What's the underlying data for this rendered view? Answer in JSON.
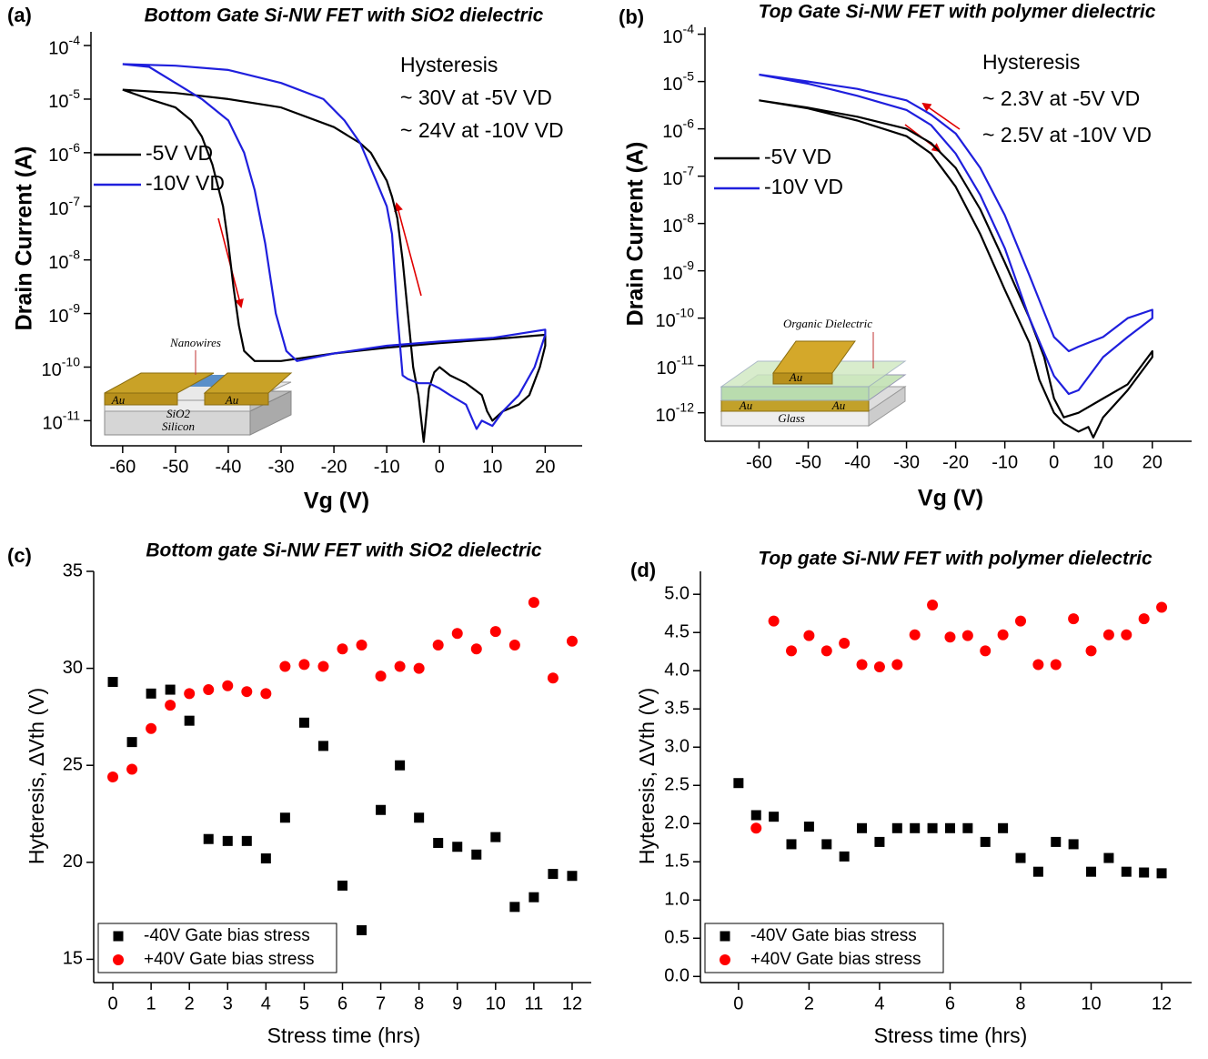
{
  "chart_data": [
    {
      "type": "line",
      "panel": "(a)",
      "title": "Bottom Gate Si-NW FET with SiO2 dielectric",
      "xlabel": "Vg (V)",
      "ylabel": "Drain Current (A)",
      "log_y": true,
      "xlim": [
        -66,
        27
      ],
      "ylim": [
        3.4e-12,
        0.00018
      ],
      "xticks": [
        -60,
        -50,
        -40,
        -30,
        -20,
        -10,
        0,
        10,
        20
      ],
      "yticks": [
        {
          "value": 0.0001,
          "label": "10-4"
        },
        {
          "value": 1e-05,
          "label": "10-5"
        },
        {
          "value": 1e-06,
          "label": "10-6"
        },
        {
          "value": 1e-07,
          "label": "10-7"
        },
        {
          "value": 1e-08,
          "label": "10-8"
        },
        {
          "value": 1e-09,
          "label": "10-9"
        },
        {
          "value": 1e-10,
          "label": "10-10"
        },
        {
          "value": 1e-11,
          "label": "10-11"
        }
      ],
      "annotations": [
        "Hysteresis",
        "~ 30V at -5V VD",
        "~ 24V at -10V VD"
      ],
      "inset_labels": [
        "Nanowires",
        "Au",
        "Au",
        "SiO2",
        "Silicon"
      ],
      "series": [
        {
          "name": "-5V VD",
          "color": "#000000",
          "x": [
            -60,
            -55,
            -50,
            -47,
            -45,
            -43,
            -41,
            -40,
            -39,
            -38,
            -37,
            -35,
            -30,
            -20,
            -10,
            0,
            10,
            20,
            20,
            19,
            17,
            15,
            12,
            10,
            9,
            8,
            5,
            2,
            0,
            -1,
            -2,
            -3,
            -4,
            -5,
            -6,
            -7,
            -8,
            -9,
            -10,
            -13,
            -15,
            -20,
            -30,
            -40,
            -50,
            -60
          ],
          "values": [
            1.5e-05,
            1e-05,
            7e-06,
            4e-06,
            2e-06,
            6e-07,
            1e-07,
            2e-08,
            3e-09,
            6e-10,
            2e-10,
            1.3e-10,
            1.3e-10,
            1.8e-10,
            2.3e-10,
            2.8e-10,
            3.3e-10,
            4e-10,
            2.5e-10,
            1e-10,
            3e-11,
            2e-11,
            1.5e-11,
            1e-11,
            1.5e-11,
            3e-11,
            5e-11,
            7e-11,
            1e-10,
            8e-11,
            4e-11,
            4e-12,
            3e-11,
            1e-10,
            1e-09,
            1e-08,
            6e-08,
            1.5e-07,
            3e-07,
            1e-06,
            1.5e-06,
            3e-06,
            7e-06,
            1e-05,
            1.3e-05,
            1.5e-05
          ]
        },
        {
          "name": "-10V VD",
          "color": "#1f1fdd",
          "x": [
            -60,
            -55,
            -50,
            -45,
            -40,
            -37,
            -35,
            -33,
            -31,
            -29,
            -27,
            -20,
            -10,
            0,
            10,
            20,
            20,
            18,
            15,
            12,
            10,
            8,
            7,
            5,
            2,
            0,
            -2,
            -4,
            -6,
            -7,
            -8,
            -9,
            -10,
            -12,
            -15,
            -18,
            -22,
            -30,
            -40,
            -50,
            -60
          ],
          "values": [
            4.5e-05,
            4e-05,
            2e-05,
            1e-05,
            4e-06,
            1e-06,
            2e-07,
            2e-08,
            1e-09,
            2e-10,
            1.3e-10,
            1.8e-10,
            2.5e-10,
            3e-10,
            3.5e-10,
            5e-10,
            4e-10,
            1e-10,
            3e-11,
            1.5e-11,
            8e-12,
            1e-11,
            7e-12,
            2e-11,
            3e-11,
            4e-11,
            5e-11,
            5e-11,
            6e-11,
            7e-11,
            1e-09,
            3e-08,
            1e-07,
            3e-07,
            1.5e-06,
            4e-06,
            1e-05,
            2e-05,
            3.5e-05,
            4.2e-05,
            4.5e-05
          ]
        }
      ]
    },
    {
      "type": "line",
      "panel": "(b)",
      "title": "Top Gate Si-NW FET with  polymer dielectric",
      "xlabel": "Vg (V)",
      "ylabel": "Drain Current (A)",
      "log_y": true,
      "xlim": [
        -71,
        28
      ],
      "ylim": [
        2.5e-13,
        0.00014
      ],
      "xticks": [
        -60,
        -50,
        -40,
        -30,
        -20,
        -10,
        0,
        10,
        20
      ],
      "yticks": [
        {
          "value": 0.0001,
          "label": "10-4"
        },
        {
          "value": 1e-05,
          "label": "10-5"
        },
        {
          "value": 1e-06,
          "label": "10-6"
        },
        {
          "value": 1e-07,
          "label": "10-7"
        },
        {
          "value": 1e-08,
          "label": "10-8"
        },
        {
          "value": 1e-09,
          "label": "10-9"
        },
        {
          "value": 1e-10,
          "label": "10-10"
        },
        {
          "value": 1e-11,
          "label": "10-11"
        },
        {
          "value": 1e-12,
          "label": "10-12"
        }
      ],
      "annotations": [
        "Hysteresis",
        "~ 2.3V at -5V VD",
        "~ 2.5V at -10V VD"
      ],
      "inset_labels": [
        "Organic Dielectric",
        "Au",
        "Au",
        "Au",
        "Glass"
      ],
      "series": [
        {
          "name": "-5V VD",
          "color": "#000000",
          "x": [
            -60,
            -50,
            -40,
            -30,
            -25,
            -20,
            -15,
            -10,
            -5,
            -2,
            0,
            2,
            5,
            10,
            15,
            20,
            20,
            15,
            10,
            8,
            7,
            5,
            2,
            0,
            -3,
            -5,
            -10,
            -15,
            -20,
            -25,
            -30,
            -40,
            -50,
            -60
          ],
          "values": [
            4e-06,
            2.8e-06,
            1.8e-06,
            1e-06,
            5e-07,
            1.5e-07,
            2e-08,
            1.5e-09,
            1e-10,
            1.5e-11,
            2e-12,
            8e-13,
            1e-12,
            2e-12,
            4e-12,
            2e-11,
            1.5e-11,
            3e-12,
            8e-13,
            3e-13,
            5e-13,
            4e-13,
            6e-13,
            1e-12,
            5e-12,
            3e-11,
            4e-10,
            6e-09,
            6e-08,
            3e-07,
            7e-07,
            1.5e-06,
            2.7e-06,
            4e-06
          ]
        },
        {
          "name": "-10V VD",
          "color": "#1f1fdd",
          "x": [
            -60,
            -50,
            -40,
            -30,
            -25,
            -20,
            -15,
            -10,
            -5,
            0,
            3,
            5,
            10,
            15,
            20,
            20,
            15,
            10,
            5,
            3,
            0,
            -5,
            -10,
            -15,
            -20,
            -25,
            -30,
            -40,
            -50,
            -60
          ],
          "values": [
            1.4e-05,
            1e-05,
            7e-06,
            4e-06,
            2e-06,
            8e-07,
            1.5e-07,
            1.5e-08,
            8e-10,
            4e-11,
            2e-11,
            2.5e-11,
            4e-11,
            1e-10,
            1.5e-10,
            1e-10,
            4e-11,
            1.5e-11,
            3e-12,
            2.5e-12,
            6e-12,
            1e-10,
            3e-09,
            4e-08,
            3e-07,
            1.2e-06,
            2.5e-06,
            5e-06,
            9e-06,
            1.4e-05
          ]
        }
      ]
    },
    {
      "type": "scatter",
      "panel": "(c)",
      "title": "Bottom gate Si-NW FET with SiO2 dielectric",
      "xlabel": "Stress time (hrs)",
      "ylabel": "Hyteresis, ∆Vth (V)",
      "xlim": [
        -0.5,
        12.5
      ],
      "ylim": [
        13.8,
        35
      ],
      "xticks": [
        0,
        1,
        2,
        3,
        4,
        5,
        6,
        7,
        8,
        9,
        10,
        11,
        12
      ],
      "yticks": [
        15,
        20,
        25,
        30,
        35
      ],
      "legend": "lower left",
      "series": [
        {
          "name": "-40V Gate bias stress",
          "color": "#000000",
          "marker": "square",
          "x": [
            0,
            0.5,
            1,
            1.5,
            2,
            2.5,
            3,
            3.5,
            4,
            4.5,
            5,
            5.5,
            6,
            6.5,
            7,
            7.5,
            8,
            8.5,
            9,
            9.5,
            10,
            10.5,
            11,
            11.5,
            12
          ],
          "values": [
            29.3,
            26.2,
            28.7,
            28.9,
            27.3,
            21.2,
            21.1,
            21.1,
            20.2,
            22.3,
            27.2,
            26.0,
            18.8,
            16.5,
            22.7,
            25.0,
            22.3,
            21.0,
            20.8,
            20.4,
            21.3,
            17.7,
            18.2,
            19.4,
            19.3
          ]
        },
        {
          "name": "+40V Gate bias stress",
          "color": "#ff0000",
          "marker": "circle",
          "x": [
            0,
            0.5,
            1,
            1.5,
            2,
            2.5,
            3,
            3.5,
            4,
            4.5,
            5,
            5.5,
            6,
            6.5,
            7,
            7.5,
            8,
            8.5,
            9,
            9.5,
            10,
            10.5,
            11,
            11.5,
            12
          ],
          "values": [
            24.4,
            24.8,
            26.9,
            28.1,
            28.7,
            28.9,
            29.1,
            28.8,
            28.7,
            30.1,
            30.2,
            30.1,
            31.0,
            31.2,
            29.6,
            30.1,
            30.0,
            31.2,
            31.8,
            31.0,
            31.9,
            31.2,
            33.4,
            29.5,
            31.4
          ]
        }
      ]
    },
    {
      "type": "scatter",
      "panel": "(d)",
      "title": "Top gate Si-NW FET with polymer dielectric",
      "xlabel": "Stress time (hrs)",
      "ylabel": "Hyteresis, ∆Vth (V)",
      "xlim": [
        -1.08,
        12.85
      ],
      "ylim": [
        -0.08,
        5.3
      ],
      "xticks": [
        0,
        2,
        4,
        6,
        8,
        10,
        12
      ],
      "yticks": [
        {
          "value": 0,
          "label": "0.0"
        },
        0.5,
        {
          "value": 1,
          "label": "1.0"
        },
        1.5,
        {
          "value": 2,
          "label": "2.0"
        },
        2.5,
        {
          "value": 3,
          "label": "3.0"
        },
        3.5,
        {
          "value": 4,
          "label": "4.0"
        },
        4.5,
        {
          "value": 5,
          "label": "5.0"
        }
      ],
      "legend": "lower left",
      "series": [
        {
          "name": "-40V Gate bias stress",
          "color": "#000000",
          "marker": "square",
          "x": [
            0,
            0.5,
            1,
            1.5,
            2,
            2.5,
            3,
            3.5,
            4,
            4.5,
            5,
            5.5,
            6,
            6.5,
            7,
            7.5,
            8,
            8.5,
            9,
            9.5,
            10,
            10.5,
            11,
            11.5,
            12
          ],
          "values": [
            2.53,
            2.11,
            2.09,
            1.73,
            1.96,
            1.73,
            1.57,
            1.94,
            1.76,
            1.94,
            1.94,
            1.94,
            1.94,
            1.94,
            1.76,
            1.94,
            1.55,
            1.37,
            1.76,
            1.73,
            1.37,
            1.55,
            1.37,
            1.36,
            1.35
          ]
        },
        {
          "name": "+40V Gate bias stress",
          "color": "#ff0000",
          "marker": "circle",
          "x": [
            0.5,
            1,
            1.5,
            2,
            2.5,
            3,
            3.5,
            4,
            4.5,
            5,
            5.5,
            6,
            6.5,
            7,
            7.5,
            8,
            8.5,
            9,
            9.5,
            10,
            10.5,
            11,
            11.5,
            12
          ],
          "values": [
            1.94,
            4.65,
            4.26,
            4.46,
            4.26,
            4.36,
            4.08,
            4.05,
            4.08,
            4.47,
            4.86,
            4.44,
            4.46,
            4.26,
            4.47,
            4.65,
            4.08,
            4.08,
            4.68,
            4.26,
            4.47,
            4.47,
            4.68,
            4.83
          ]
        }
      ]
    }
  ]
}
